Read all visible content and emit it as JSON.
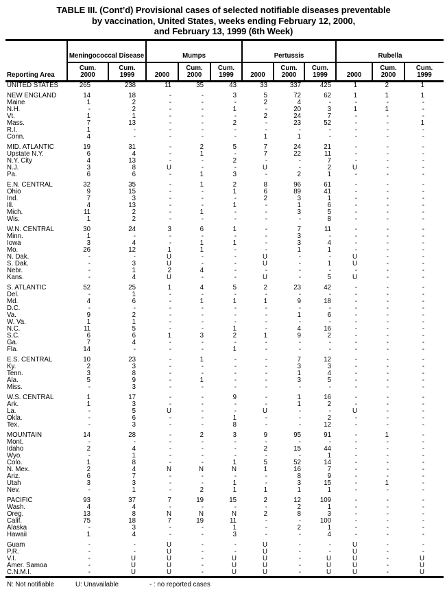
{
  "title": {
    "line1": "TABLE III. (Cont’d) Provisional cases of selected notifiable diseases preventable",
    "line2": "by vaccination, United States, weeks ending February 12, 2000,",
    "line3": "and February 13, 1999 (6th Week)"
  },
  "table": {
    "reporting_area_label": "Reporting Area",
    "groups": [
      {
        "label": "Meningococcal Disease",
        "colspan": 2
      },
      {
        "label": "Mumps",
        "colspan": 3
      },
      {
        "label": "Pertussis",
        "colspan": 3
      },
      {
        "label": "Rubella",
        "colspan": 3
      }
    ],
    "sub_headers": [
      "Cum.\n2000",
      "Cum.\n1999",
      "2000",
      "Cum.\n2000",
      "Cum.\n1999",
      "2000",
      "Cum.\n2000",
      "Cum.\n1999",
      "2000",
      "Cum.\n2000",
      "Cum.\n1999"
    ],
    "sections": [
      {
        "rows": [
          [
            "UNITED STATES",
            "265",
            "238",
            "11",
            "35",
            "43",
            "33",
            "337",
            "425",
            "1",
            "2",
            "1"
          ]
        ]
      },
      {
        "rows": [
          [
            "NEW ENGLAND",
            "14",
            "18",
            "-",
            "-",
            "3",
            "5",
            "72",
            "62",
            "1",
            "1",
            "1"
          ],
          [
            "Maine",
            "1",
            "2",
            "-",
            "-",
            "-",
            "2",
            "4",
            "-",
            "-",
            "-",
            "-"
          ],
          [
            "N.H.",
            "-",
            "2",
            "-",
            "-",
            "1",
            "-",
            "20",
            "3",
            "1",
            "1",
            "-"
          ],
          [
            "Vt.",
            "1",
            "1",
            "-",
            "-",
            "-",
            "2",
            "24",
            "7",
            "-",
            "-",
            "-"
          ],
          [
            "Mass.",
            "7",
            "13",
            "-",
            "-",
            "2",
            "-",
            "23",
            "52",
            "-",
            "-",
            "1"
          ],
          [
            "R.I.",
            "1",
            "-",
            "-",
            "-",
            "-",
            "-",
            "-",
            "-",
            "-",
            "-",
            "-"
          ],
          [
            "Conn.",
            "4",
            "-",
            "-",
            "-",
            "-",
            "1",
            "1",
            "-",
            "-",
            "-",
            "-"
          ]
        ]
      },
      {
        "rows": [
          [
            "MID. ATLANTIC",
            "19",
            "31",
            "-",
            "2",
            "5",
            "7",
            "24",
            "21",
            "-",
            "-",
            "-"
          ],
          [
            "Upstate N.Y.",
            "6",
            "4",
            "-",
            "1",
            "-",
            "7",
            "22",
            "11",
            "-",
            "-",
            "-"
          ],
          [
            "N.Y. City",
            "4",
            "13",
            "-",
            "-",
            "2",
            "-",
            "-",
            "7",
            "-",
            "-",
            "-"
          ],
          [
            "N.J.",
            "3",
            "8",
            "U",
            "-",
            "-",
            "U",
            "-",
            "2",
            "U",
            "-",
            "-"
          ],
          [
            "Pa.",
            "6",
            "6",
            "-",
            "1",
            "3",
            "-",
            "2",
            "1",
            "-",
            "-",
            "-"
          ]
        ]
      },
      {
        "rows": [
          [
            "E.N. CENTRAL",
            "32",
            "35",
            "-",
            "1",
            "2",
            "8",
            "96",
            "61",
            "-",
            "-",
            "-"
          ],
          [
            "Ohio",
            "9",
            "15",
            "-",
            "-",
            "1",
            "6",
            "89",
            "41",
            "-",
            "-",
            "-"
          ],
          [
            "Ind.",
            "7",
            "3",
            "-",
            "-",
            "-",
            "2",
            "3",
            "1",
            "-",
            "-",
            "-"
          ],
          [
            "Ill.",
            "4",
            "13",
            "-",
            "-",
            "1",
            "-",
            "1",
            "6",
            "-",
            "-",
            "-"
          ],
          [
            "Mich.",
            "11",
            "2",
            "-",
            "1",
            "-",
            "-",
            "3",
            "5",
            "-",
            "-",
            "-"
          ],
          [
            "Wis.",
            "1",
            "2",
            "-",
            "-",
            "-",
            "-",
            "-",
            "8",
            "-",
            "-",
            "-"
          ]
        ]
      },
      {
        "rows": [
          [
            "W.N. CENTRAL",
            "30",
            "24",
            "3",
            "6",
            "1",
            "-",
            "7",
            "11",
            "-",
            "-",
            "-"
          ],
          [
            "Minn.",
            "1",
            "-",
            "-",
            "-",
            "-",
            "-",
            "3",
            "-",
            "-",
            "-",
            "-"
          ],
          [
            "Iowa",
            "3",
            "4",
            "-",
            "1",
            "1",
            "-",
            "3",
            "4",
            "-",
            "-",
            "-"
          ],
          [
            "Mo.",
            "26",
            "12",
            "1",
            "1",
            "-",
            "-",
            "1",
            "1",
            "-",
            "-",
            "-"
          ],
          [
            "N. Dak.",
            "-",
            "-",
            "U",
            "-",
            "-",
            "U",
            "-",
            "-",
            "U",
            "-",
            "-"
          ],
          [
            "S. Dak.",
            "-",
            "3",
            "U",
            "-",
            "-",
            "U",
            "-",
            "1",
            "U",
            "-",
            "-"
          ],
          [
            "Nebr.",
            "-",
            "1",
            "2",
            "4",
            "-",
            "-",
            "-",
            "-",
            "-",
            "-",
            "-"
          ],
          [
            "Kans.",
            "-",
            "4",
            "U",
            "-",
            "-",
            "U",
            "-",
            "5",
            "U",
            "-",
            "-"
          ]
        ]
      },
      {
        "rows": [
          [
            "S. ATLANTIC",
            "52",
            "25",
            "1",
            "4",
            "5",
            "2",
            "23",
            "42",
            "-",
            "-",
            "-"
          ],
          [
            "Del.",
            "-",
            "1",
            "-",
            "-",
            "-",
            "-",
            "-",
            "-",
            "-",
            "-",
            "-"
          ],
          [
            "Md.",
            "4",
            "6",
            "-",
            "1",
            "1",
            "1",
            "9",
            "18",
            "-",
            "-",
            "-"
          ],
          [
            "D.C.",
            "-",
            "-",
            "-",
            "-",
            "-",
            "-",
            "-",
            "-",
            "-",
            "-",
            "-"
          ],
          [
            "Va.",
            "9",
            "2",
            "-",
            "-",
            "-",
            "-",
            "1",
            "6",
            "-",
            "-",
            "-"
          ],
          [
            "W. Va.",
            "1",
            "1",
            "-",
            "-",
            "-",
            "-",
            "-",
            "-",
            "-",
            "-",
            "-"
          ],
          [
            "N.C.",
            "11",
            "5",
            "-",
            "-",
            "1",
            "-",
            "4",
            "16",
            "-",
            "-",
            "-"
          ],
          [
            "S.C.",
            "6",
            "6",
            "1",
            "3",
            "2",
            "1",
            "9",
            "2",
            "-",
            "-",
            "-"
          ],
          [
            "Ga.",
            "7",
            "4",
            "-",
            "-",
            "-",
            "-",
            "-",
            "-",
            "-",
            "-",
            "-"
          ],
          [
            "Fla.",
            "14",
            "-",
            "-",
            "-",
            "1",
            "-",
            "-",
            "-",
            "-",
            "-",
            "-"
          ]
        ]
      },
      {
        "rows": [
          [
            "E.S. CENTRAL",
            "10",
            "23",
            "-",
            "1",
            "-",
            "-",
            "7",
            "12",
            "-",
            "-",
            "-"
          ],
          [
            "Ky.",
            "2",
            "3",
            "-",
            "-",
            "-",
            "-",
            "3",
            "3",
            "-",
            "-",
            "-"
          ],
          [
            "Tenn.",
            "3",
            "8",
            "-",
            "-",
            "-",
            "-",
            "1",
            "4",
            "-",
            "-",
            "-"
          ],
          [
            "Ala.",
            "5",
            "9",
            "-",
            "1",
            "-",
            "-",
            "3",
            "5",
            "-",
            "-",
            "-"
          ],
          [
            "Miss.",
            "-",
            "3",
            "-",
            "-",
            "-",
            "-",
            "-",
            "-",
            "-",
            "-",
            "-"
          ]
        ]
      },
      {
        "rows": [
          [
            "W.S. CENTRAL",
            "1",
            "17",
            "-",
            "-",
            "9",
            "-",
            "1",
            "16",
            "-",
            "-",
            "-"
          ],
          [
            "Ark.",
            "1",
            "3",
            "-",
            "-",
            "-",
            "-",
            "1",
            "2",
            "-",
            "-",
            "-"
          ],
          [
            "La.",
            "-",
            "5",
            "U",
            "-",
            "-",
            "U",
            "-",
            "-",
            "U",
            "-",
            "-"
          ],
          [
            "Okla.",
            "-",
            "6",
            "-",
            "-",
            "1",
            "-",
            "-",
            "2",
            "-",
            "-",
            "-"
          ],
          [
            "Tex.",
            "-",
            "3",
            "-",
            "-",
            "8",
            "-",
            "-",
            "12",
            "-",
            "-",
            "-"
          ]
        ]
      },
      {
        "rows": [
          [
            "MOUNTAIN",
            "14",
            "28",
            "-",
            "2",
            "3",
            "9",
            "95",
            "91",
            "-",
            "1",
            "-"
          ],
          [
            "Mont.",
            "-",
            "-",
            "-",
            "-",
            "-",
            "-",
            "-",
            "-",
            "-",
            "-",
            "-"
          ],
          [
            "Idaho",
            "2",
            "4",
            "-",
            "-",
            "-",
            "2",
            "15",
            "44",
            "-",
            "-",
            "-"
          ],
          [
            "Wyo.",
            "-",
            "1",
            "-",
            "-",
            "-",
            "-",
            "-",
            "1",
            "-",
            "-",
            "-"
          ],
          [
            "Colo.",
            "1",
            "8",
            "-",
            "-",
            "1",
            "5",
            "52",
            "14",
            "-",
            "-",
            "-"
          ],
          [
            "N. Mex.",
            "2",
            "4",
            "N",
            "N",
            "N",
            "1",
            "16",
            "7",
            "-",
            "-",
            "-"
          ],
          [
            "Ariz.",
            "6",
            "7",
            "-",
            "-",
            "-",
            "-",
            "8",
            "9",
            "-",
            "-",
            "-"
          ],
          [
            "Utah",
            "3",
            "3",
            "-",
            "-",
            "1",
            "-",
            "3",
            "15",
            "-",
            "1",
            "-"
          ],
          [
            "Nev.",
            "-",
            "1",
            "-",
            "2",
            "1",
            "1",
            "1",
            "1",
            "-",
            "-",
            "-"
          ]
        ]
      },
      {
        "rows": [
          [
            "PACIFIC",
            "93",
            "37",
            "7",
            "19",
            "15",
            "2",
            "12",
            "109",
            "-",
            "-",
            "-"
          ],
          [
            "Wash.",
            "4",
            "4",
            "-",
            "-",
            "-",
            "-",
            "2",
            "1",
            "-",
            "-",
            "-"
          ],
          [
            "Oreg.",
            "13",
            "8",
            "N",
            "N",
            "N",
            "2",
            "8",
            "3",
            "-",
            "-",
            "-"
          ],
          [
            "Calif.",
            "75",
            "18",
            "7",
            "19",
            "11",
            "-",
            "-",
            "100",
            "-",
            "-",
            "-"
          ],
          [
            "Alaska",
            "-",
            "3",
            "-",
            "-",
            "1",
            "-",
            "2",
            "1",
            "-",
            "-",
            "-"
          ],
          [
            "Hawaii",
            "1",
            "4",
            "-",
            "-",
            "3",
            "-",
            "-",
            "4",
            "-",
            "-",
            "-"
          ]
        ]
      },
      {
        "rows": [
          [
            "Guam",
            "-",
            "-",
            "U",
            "-",
            "-",
            "U",
            "-",
            "-",
            "U",
            "-",
            "-"
          ],
          [
            "P.R.",
            "-",
            "-",
            "U",
            "-",
            "-",
            "U",
            "-",
            "-",
            "U",
            "-",
            "-"
          ],
          [
            "V.I.",
            "-",
            "U",
            "U",
            "-",
            "U",
            "U",
            "-",
            "U",
            "U",
            "-",
            "U"
          ],
          [
            "Amer. Samoa",
            "-",
            "U",
            "U",
            "-",
            "U",
            "U",
            "-",
            "U",
            "U",
            "-",
            "U"
          ],
          [
            "C.N.M.I.",
            "-",
            "U",
            "U",
            "-",
            "U",
            "U",
            "-",
            "U",
            "U",
            "-",
            "U"
          ]
        ]
      }
    ]
  },
  "footnotes": {
    "n": "N: Not notifiable",
    "u": "U: Unavailable",
    "dash": "- : no reported cases"
  }
}
